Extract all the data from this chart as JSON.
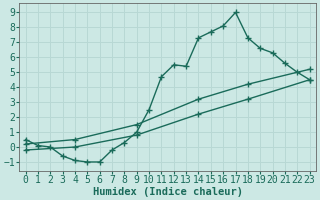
{
  "xlabel": "Humidex (Indice chaleur)",
  "bg_color": "#cce8e4",
  "line_color": "#1a6b5a",
  "grid_color": "#b8d8d4",
  "xlim": [
    -0.5,
    23.5
  ],
  "ylim": [
    -1.6,
    9.6
  ],
  "xticks": [
    0,
    1,
    2,
    3,
    4,
    5,
    6,
    7,
    8,
    9,
    10,
    11,
    12,
    13,
    14,
    15,
    16,
    17,
    18,
    19,
    20,
    21,
    22,
    23
  ],
  "yticks": [
    -1,
    0,
    1,
    2,
    3,
    4,
    5,
    6,
    7,
    8,
    9
  ],
  "line1_x": [
    0,
    1,
    2,
    3,
    4,
    5,
    6,
    7,
    8,
    9,
    10,
    11,
    12,
    13,
    14,
    15,
    16,
    17,
    18,
    19,
    20,
    21,
    22,
    23
  ],
  "line1_y": [
    0.5,
    0.1,
    0.0,
    -0.6,
    -0.9,
    -1.0,
    -1.0,
    -0.2,
    0.3,
    1.0,
    2.5,
    4.7,
    5.5,
    5.4,
    7.3,
    7.7,
    8.1,
    9.0,
    7.3,
    6.6,
    6.3,
    5.6,
    5.0,
    4.5
  ],
  "line2_x": [
    0,
    4,
    9,
    14,
    18,
    23
  ],
  "line2_y": [
    0.2,
    0.5,
    1.5,
    3.2,
    4.2,
    5.2
  ],
  "line3_x": [
    0,
    4,
    9,
    14,
    18,
    23
  ],
  "line3_y": [
    -0.2,
    0.0,
    0.8,
    2.2,
    3.2,
    4.5
  ],
  "tick_fontsize": 7,
  "label_fontsize": 7.5
}
